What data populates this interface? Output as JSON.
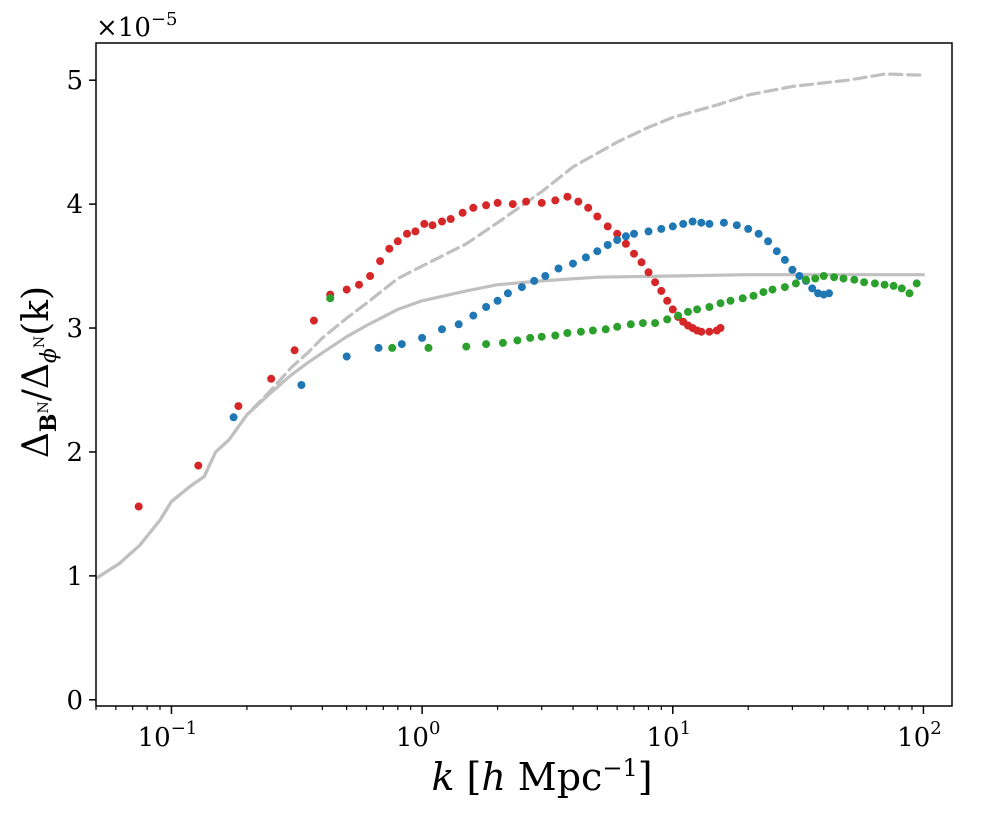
{
  "chart_data": {
    "type": "scatter",
    "title": "",
    "x_scale": "log",
    "xlim": [
      0.05,
      130
    ],
    "ylim": [
      -0.05,
      5.3
    ],
    "y_multiplier": {
      "base": "×10",
      "exponent": "−5"
    },
    "xlabel": {
      "k": "k",
      "open": "[",
      "h": "h",
      "unit": "Mpc",
      "exp": "−1",
      "close": "]"
    },
    "ylabel": {
      "delta1": "Δ",
      "sub1": "B",
      "sup1": "N",
      "slash": "/",
      "delta2": "Δ",
      "sub2": "ϕ",
      "sup2": "N",
      "arg": "(k)"
    },
    "x_ticks": [
      {
        "value": 0.1,
        "base": "10",
        "exp": "−1"
      },
      {
        "value": 1,
        "base": "10",
        "exp": "0"
      },
      {
        "value": 10,
        "base": "10",
        "exp": "1"
      },
      {
        "value": 100,
        "base": "10",
        "exp": "2"
      }
    ],
    "y_ticks": [
      {
        "value": 0,
        "label": "0"
      },
      {
        "value": 1,
        "label": "1"
      },
      {
        "value": 2,
        "label": "2"
      },
      {
        "value": 3,
        "label": "3"
      },
      {
        "value": 4,
        "label": "4"
      },
      {
        "value": 5,
        "label": "5"
      }
    ],
    "lines": [
      {
        "name": "grey-solid",
        "color": "#c0c0c0",
        "dashed": false,
        "points": [
          [
            0.05,
            0.98
          ],
          [
            0.062,
            1.1
          ],
          [
            0.075,
            1.25
          ],
          [
            0.09,
            1.45
          ],
          [
            0.1,
            1.6
          ],
          [
            0.12,
            1.73
          ],
          [
            0.135,
            1.8
          ],
          [
            0.15,
            2.0
          ],
          [
            0.17,
            2.1
          ],
          [
            0.2,
            2.3
          ],
          [
            0.25,
            2.48
          ],
          [
            0.3,
            2.62
          ],
          [
            0.35,
            2.72
          ],
          [
            0.4,
            2.8
          ],
          [
            0.5,
            2.93
          ],
          [
            0.6,
            3.02
          ],
          [
            0.8,
            3.15
          ],
          [
            1,
            3.22
          ],
          [
            1.5,
            3.3
          ],
          [
            2,
            3.35
          ],
          [
            3,
            3.38
          ],
          [
            5,
            3.41
          ],
          [
            10,
            3.42
          ],
          [
            20,
            3.43
          ],
          [
            50,
            3.43
          ],
          [
            100,
            3.43
          ]
        ]
      },
      {
        "name": "grey-dashed",
        "color": "#c0c0c0",
        "dashed": true,
        "points": [
          [
            0.05,
            0.98
          ],
          [
            0.062,
            1.1
          ],
          [
            0.075,
            1.25
          ],
          [
            0.09,
            1.45
          ],
          [
            0.1,
            1.6
          ],
          [
            0.12,
            1.73
          ],
          [
            0.135,
            1.8
          ],
          [
            0.15,
            2.0
          ],
          [
            0.17,
            2.1
          ],
          [
            0.2,
            2.3
          ],
          [
            0.25,
            2.5
          ],
          [
            0.3,
            2.68
          ],
          [
            0.35,
            2.8
          ],
          [
            0.4,
            2.92
          ],
          [
            0.5,
            3.08
          ],
          [
            0.6,
            3.2
          ],
          [
            0.8,
            3.4
          ],
          [
            1,
            3.5
          ],
          [
            1.5,
            3.68
          ],
          [
            2,
            3.85
          ],
          [
            3,
            4.1
          ],
          [
            4,
            4.3
          ],
          [
            6,
            4.5
          ],
          [
            8,
            4.62
          ],
          [
            10,
            4.7
          ],
          [
            15,
            4.8
          ],
          [
            20,
            4.88
          ],
          [
            30,
            4.95
          ],
          [
            50,
            5.0
          ],
          [
            70,
            5.05
          ],
          [
            100,
            5.04
          ]
        ]
      }
    ],
    "series": [
      {
        "name": "red",
        "color": "#d62728",
        "points": [
          [
            0.074,
            1.56
          ],
          [
            0.128,
            1.89
          ],
          [
            0.185,
            2.37
          ],
          [
            0.25,
            2.59
          ],
          [
            0.31,
            2.82
          ],
          [
            0.37,
            3.06
          ],
          [
            0.43,
            3.27
          ],
          [
            0.5,
            3.31
          ],
          [
            0.56,
            3.35
          ],
          [
            0.62,
            3.42
          ],
          [
            0.68,
            3.54
          ],
          [
            0.74,
            3.64
          ],
          [
            0.8,
            3.7
          ],
          [
            0.87,
            3.76
          ],
          [
            0.94,
            3.78
          ],
          [
            1.02,
            3.84
          ],
          [
            1.1,
            3.83
          ],
          [
            1.2,
            3.86
          ],
          [
            1.3,
            3.88
          ],
          [
            1.45,
            3.93
          ],
          [
            1.6,
            3.97
          ],
          [
            1.8,
            3.99
          ],
          [
            2.0,
            4.01
          ],
          [
            2.3,
            4.0
          ],
          [
            2.6,
            4.02
          ],
          [
            3.0,
            4.01
          ],
          [
            3.4,
            4.03
          ],
          [
            3.8,
            4.06
          ],
          [
            4.2,
            4.02
          ],
          [
            4.6,
            3.97
          ],
          [
            5.0,
            3.9
          ],
          [
            5.5,
            3.82
          ],
          [
            6.0,
            3.76
          ],
          [
            6.5,
            3.68
          ],
          [
            7.0,
            3.6
          ],
          [
            7.5,
            3.53
          ],
          [
            8.0,
            3.45
          ],
          [
            8.5,
            3.37
          ],
          [
            9.0,
            3.3
          ],
          [
            9.5,
            3.22
          ],
          [
            10,
            3.15
          ],
          [
            10.5,
            3.09
          ],
          [
            11,
            3.05
          ],
          [
            11.5,
            3.02
          ],
          [
            12,
            3.0
          ],
          [
            12.5,
            2.98
          ],
          [
            13,
            2.97
          ],
          [
            14,
            2.97
          ],
          [
            15,
            2.98
          ],
          [
            15.5,
            3.0
          ]
        ]
      },
      {
        "name": "blue",
        "color": "#1f77b4",
        "points": [
          [
            0.177,
            2.28
          ],
          [
            0.33,
            2.54
          ],
          [
            0.5,
            2.77
          ],
          [
            0.67,
            2.84
          ],
          [
            0.83,
            2.87
          ],
          [
            1.0,
            2.92
          ],
          [
            1.2,
            2.99
          ],
          [
            1.4,
            3.03
          ],
          [
            1.6,
            3.1
          ],
          [
            1.8,
            3.17
          ],
          [
            2.0,
            3.22
          ],
          [
            2.2,
            3.28
          ],
          [
            2.5,
            3.33
          ],
          [
            2.8,
            3.38
          ],
          [
            3.1,
            3.42
          ],
          [
            3.5,
            3.48
          ],
          [
            4.0,
            3.52
          ],
          [
            4.5,
            3.57
          ],
          [
            5.0,
            3.62
          ],
          [
            5.5,
            3.67
          ],
          [
            6.0,
            3.71
          ],
          [
            6.5,
            3.74
          ],
          [
            7.0,
            3.76
          ],
          [
            8.0,
            3.78
          ],
          [
            9.0,
            3.8
          ],
          [
            10,
            3.82
          ],
          [
            11,
            3.84
          ],
          [
            12,
            3.86
          ],
          [
            13,
            3.85
          ],
          [
            14,
            3.84
          ],
          [
            16,
            3.85
          ],
          [
            18,
            3.83
          ],
          [
            20,
            3.8
          ],
          [
            22,
            3.76
          ],
          [
            24,
            3.7
          ],
          [
            26,
            3.62
          ],
          [
            28,
            3.55
          ],
          [
            30,
            3.47
          ],
          [
            32,
            3.42
          ],
          [
            34,
            3.38
          ],
          [
            36,
            3.32
          ],
          [
            38,
            3.28
          ],
          [
            40,
            3.27
          ],
          [
            42,
            3.28
          ]
        ]
      },
      {
        "name": "green",
        "color": "#2ca02c",
        "points": [
          [
            0.43,
            3.24
          ],
          [
            0.76,
            2.84
          ],
          [
            1.06,
            2.84
          ],
          [
            1.5,
            2.85
          ],
          [
            1.8,
            2.87
          ],
          [
            2.1,
            2.88
          ],
          [
            2.4,
            2.9
          ],
          [
            2.7,
            2.92
          ],
          [
            3.0,
            2.93
          ],
          [
            3.4,
            2.94
          ],
          [
            3.8,
            2.96
          ],
          [
            4.3,
            2.97
          ],
          [
            4.8,
            2.98
          ],
          [
            5.4,
            2.99
          ],
          [
            6.0,
            3.01
          ],
          [
            6.8,
            3.03
          ],
          [
            7.6,
            3.04
          ],
          [
            8.5,
            3.04
          ],
          [
            9.5,
            3.07
          ],
          [
            10.5,
            3.1
          ],
          [
            11.5,
            3.13
          ],
          [
            12.5,
            3.15
          ],
          [
            14,
            3.17
          ],
          [
            15.5,
            3.2
          ],
          [
            17,
            3.22
          ],
          [
            19,
            3.24
          ],
          [
            21,
            3.26
          ],
          [
            23,
            3.29
          ],
          [
            25,
            3.31
          ],
          [
            28,
            3.33
          ],
          [
            31,
            3.36
          ],
          [
            34,
            3.39
          ],
          [
            37,
            3.4
          ],
          [
            40,
            3.42
          ],
          [
            44,
            3.41
          ],
          [
            48,
            3.4
          ],
          [
            53,
            3.39
          ],
          [
            58,
            3.37
          ],
          [
            64,
            3.36
          ],
          [
            70,
            3.35
          ],
          [
            76,
            3.34
          ],
          [
            82,
            3.32
          ],
          [
            88,
            3.28
          ],
          [
            94,
            3.36
          ]
        ]
      }
    ]
  }
}
